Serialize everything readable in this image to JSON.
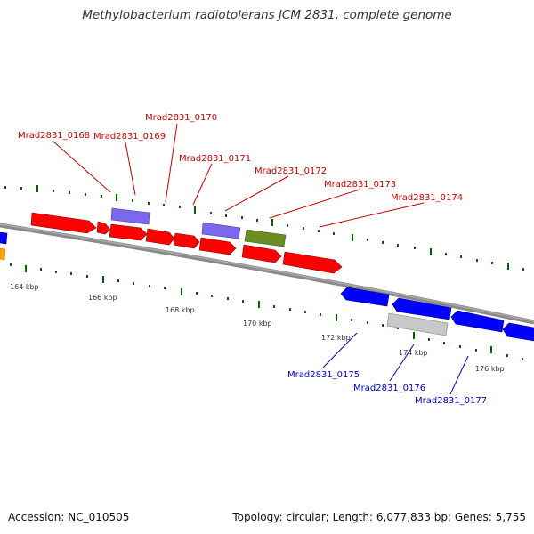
{
  "title": "Methylobacterium radiotolerans JCM 2831, complete genome",
  "footer": {
    "accession": "Accession: NC_010505",
    "summary": "Topology: circular; Length: 6,077,833 bp; Genes: 5,755"
  },
  "colors": {
    "backbone": "#8a8a8a",
    "red_gene": "#ff0000",
    "blue_gene": "#0000ff",
    "purple_gene": "#7b68ee",
    "olive_gene": "#6b8e23",
    "gray_gene": "#c8c8c8",
    "orange_gene": "#ffa500",
    "tick": "#006400",
    "red_label": "#cc0000",
    "blue_label": "#0000cc"
  },
  "scale": {
    "labels": [
      {
        "text": "164 kbp"
      },
      {
        "text": "166 kbp"
      },
      {
        "text": "168 kbp"
      },
      {
        "text": "170 kbp"
      },
      {
        "text": "172 kbp"
      },
      {
        "text": "174 kbp"
      },
      {
        "text": "176 kbp"
      }
    ]
  },
  "gene_labels": {
    "forward": [
      "Mrad2831_0168",
      "Mrad2831_0169",
      "Mrad2831_0170",
      "Mrad2831_0171",
      "Mrad2831_0172",
      "Mrad2831_0173",
      "Mrad2831_0174"
    ],
    "reverse": [
      "Mrad2831_0175",
      "Mrad2831_0176",
      "Mrad2831_0177"
    ]
  }
}
